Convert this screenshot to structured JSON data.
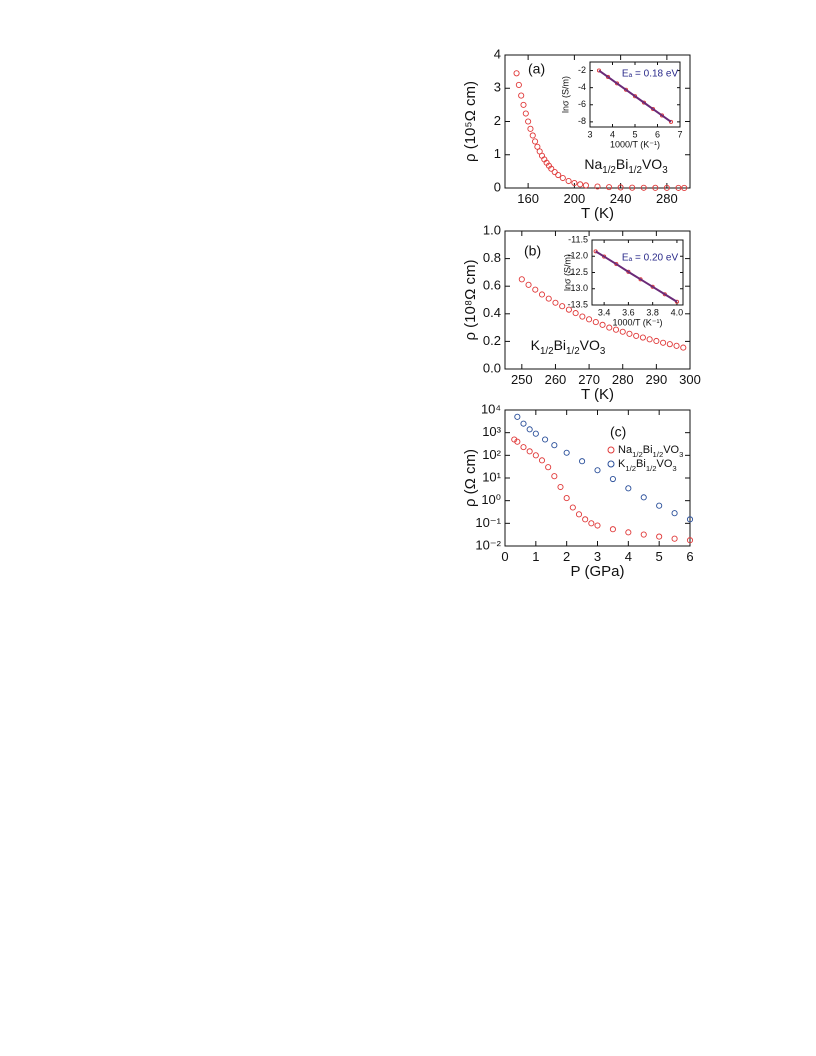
{
  "chart_data": [
    {
      "type": "scatter",
      "xlabel": "T (K)",
      "ylabel": "ρ (10⁵Ω cm)",
      "annotations": [
        "(a)",
        "Na1/2Bi1/2VO3"
      ],
      "xlim": [
        140,
        300
      ],
      "xticks": [
        160,
        200,
        240,
        280
      ],
      "ylim": [
        0,
        4
      ],
      "yticks": [
        0,
        1,
        2,
        3,
        4
      ],
      "color": "#e03a3a",
      "x": [
        150,
        152,
        154,
        156,
        158,
        160,
        162,
        164,
        166,
        168,
        170,
        172,
        174,
        176,
        178,
        180,
        183,
        186,
        190,
        195,
        200,
        205,
        210,
        220,
        230,
        240,
        250,
        260,
        270,
        280,
        290,
        295
      ],
      "values": [
        3.45,
        3.1,
        2.78,
        2.5,
        2.24,
        2.0,
        1.78,
        1.58,
        1.4,
        1.24,
        1.1,
        0.97,
        0.86,
        0.76,
        0.67,
        0.58,
        0.48,
        0.39,
        0.3,
        0.21,
        0.15,
        0.11,
        0.08,
        0.045,
        0.026,
        0.016,
        0.01,
        0.007,
        0.005,
        0.004,
        0.003,
        0.002
      ]
    },
    {
      "type": "line",
      "xlabel": "1000/T (K⁻¹)",
      "ylabel": "lnσ (S/m)",
      "annotations": [
        "Eₐ = 0.18 eV"
      ],
      "xlim": [
        3,
        7
      ],
      "xticks": [
        3,
        4,
        5,
        6,
        7
      ],
      "ylim": [
        -8.6,
        -1
      ],
      "yticks": [
        -2,
        -4,
        -6,
        -8
      ],
      "color": "#e03a3a",
      "line_color": "#6a2a78",
      "x": [
        3.4,
        3.8,
        4.2,
        4.6,
        5.0,
        5.4,
        5.8,
        6.2,
        6.6
      ],
      "values": [
        -2,
        -2.75,
        -3.5,
        -4.25,
        -5.0,
        -5.75,
        -6.5,
        -7.25,
        -8.0
      ]
    },
    {
      "type": "scatter",
      "xlabel": "T (K)",
      "ylabel": "ρ (10⁸Ω cm)",
      "annotations": [
        "(b)",
        "K1/2Bi1/2VO3"
      ],
      "xlim": [
        245,
        300
      ],
      "xticks": [
        250,
        260,
        270,
        280,
        290,
        300
      ],
      "ylim": [
        0,
        1
      ],
      "yticks": [
        {
          "value": 0,
          "label": "0.0"
        },
        0.2,
        0.4,
        0.6,
        0.8,
        {
          "value": 1,
          "label": "1.0"
        }
      ],
      "color": "#e03a3a",
      "x": [
        250,
        252,
        254,
        256,
        258,
        260,
        262,
        264,
        266,
        268,
        270,
        272,
        274,
        276,
        278,
        280,
        282,
        284,
        286,
        288,
        290,
        292,
        294,
        296,
        298
      ],
      "values": [
        0.65,
        0.61,
        0.575,
        0.54,
        0.51,
        0.48,
        0.455,
        0.43,
        0.405,
        0.38,
        0.36,
        0.34,
        0.32,
        0.3,
        0.285,
        0.27,
        0.255,
        0.24,
        0.228,
        0.215,
        0.203,
        0.19,
        0.18,
        0.168,
        0.155
      ]
    },
    {
      "type": "line",
      "xlabel": "1000/T (K⁻¹)",
      "ylabel": "lnσ (S/m)",
      "annotations": [
        "Eₐ = 0.20 eV"
      ],
      "xlim": [
        3.3,
        4.05
      ],
      "xticks": [
        3.4,
        3.6,
        3.8,
        {
          "value": 4,
          "label": "4.0"
        }
      ],
      "ylim": [
        -13.5,
        -11.5
      ],
      "yticks": [
        -11.5,
        {
          "value": -12,
          "label": "-12.0"
        },
        -12.5,
        {
          "value": -13,
          "label": "-13.0"
        },
        -13.5
      ],
      "color": "#e03a3a",
      "line_color": "#6a2a78",
      "x": [
        3.33,
        3.4,
        3.5,
        3.6,
        3.7,
        3.8,
        3.9,
        4.0
      ],
      "values": [
        -11.85,
        -12.01,
        -12.24,
        -12.48,
        -12.71,
        -12.94,
        -13.17,
        -13.4
      ]
    },
    {
      "type": "scatter",
      "xlabel": "P (GPa)",
      "ylabel": "ρ (Ω cm)",
      "annotations": [
        "(c)"
      ],
      "log_y": true,
      "xlim": [
        0,
        6
      ],
      "xticks": [
        0,
        1,
        2,
        3,
        4,
        5,
        6
      ],
      "ylim": [
        0.01,
        10000
      ],
      "yticks": [
        {
          "value": 0.01,
          "label": "10⁻²"
        },
        {
          "value": 0.1,
          "label": "10⁻¹"
        },
        {
          "value": 1,
          "label": "10⁰"
        },
        {
          "value": 10,
          "label": "10¹"
        },
        {
          "value": 100,
          "label": "10²"
        },
        {
          "value": 1000,
          "label": "10³"
        },
        {
          "value": 10000,
          "label": "10⁴"
        }
      ],
      "series": [
        {
          "name": "Na1/2Bi1/2VO3",
          "color": "#e03a3a",
          "x": [
            0.3,
            0.4,
            0.6,
            0.8,
            1.0,
            1.2,
            1.4,
            1.6,
            1.8,
            2.0,
            2.2,
            2.4,
            2.6,
            2.8,
            3.0,
            3.5,
            4,
            4.5,
            5,
            5.5,
            6
          ],
          "values": [
            500,
            400,
            230,
            150,
            100,
            60,
            30,
            12,
            4,
            1.3,
            0.5,
            0.25,
            0.15,
            0.1,
            0.08,
            0.055,
            0.04,
            0.032,
            0.026,
            0.021,
            0.018
          ]
        },
        {
          "name": "K1/2Bi1/2VO3",
          "color": "#2a4f9a",
          "x": [
            0.4,
            0.6,
            0.8,
            1.0,
            1.3,
            1.6,
            2.0,
            2.5,
            3.0,
            3.5,
            4.0,
            4.5,
            5.0,
            5.5,
            6.0
          ],
          "values": [
            5000,
            2500,
            1400,
            900,
            500,
            280,
            130,
            55,
            22,
            9,
            3.5,
            1.4,
            0.6,
            0.28,
            0.15
          ]
        }
      ]
    }
  ]
}
